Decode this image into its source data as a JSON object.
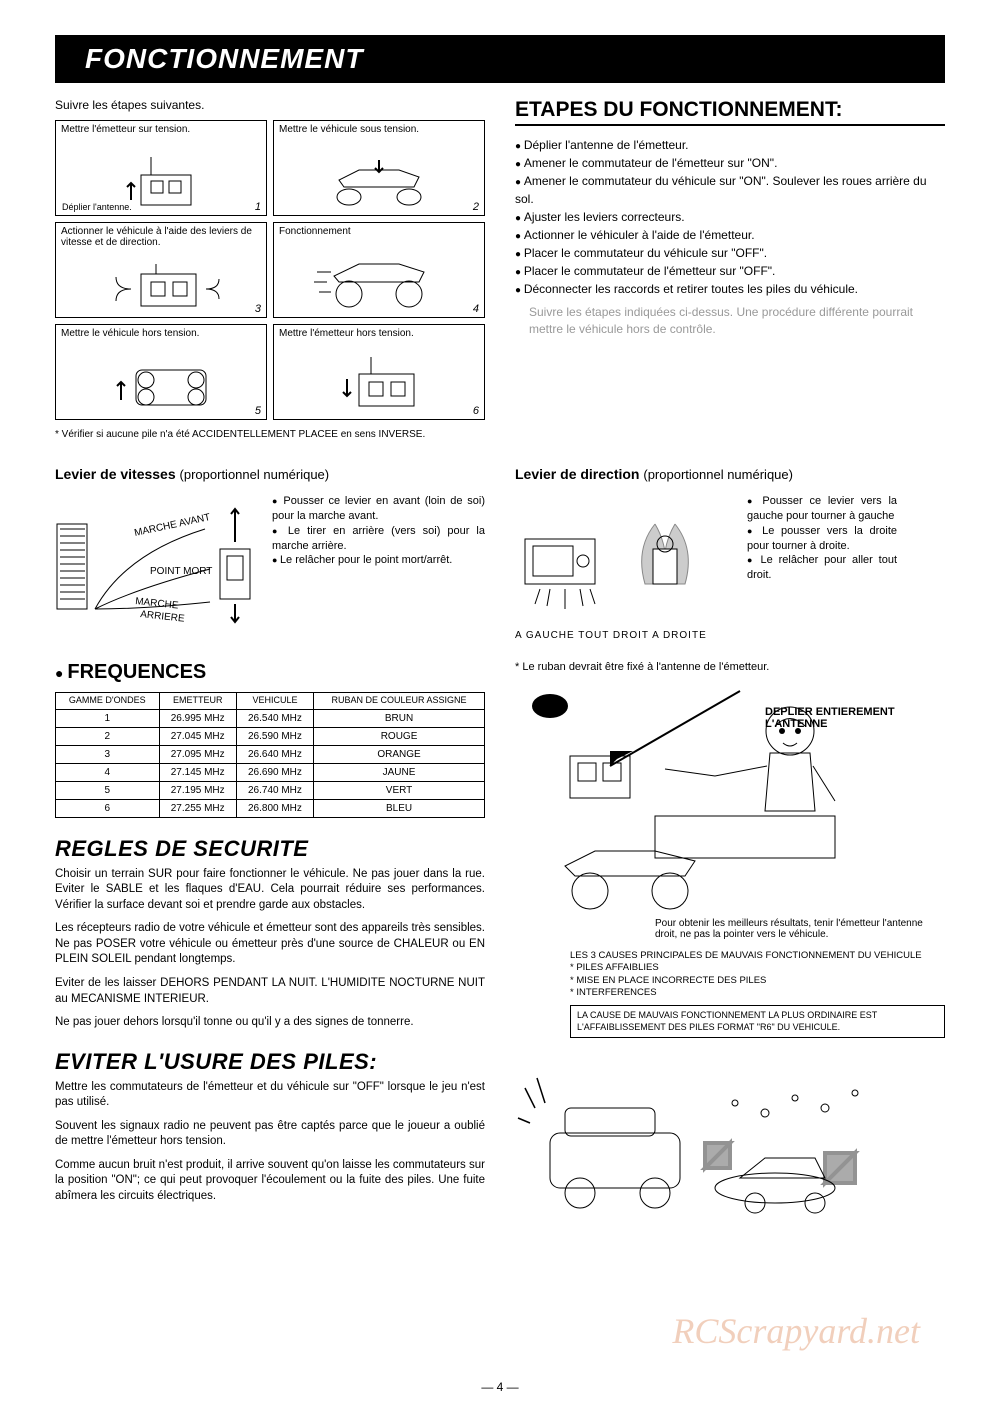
{
  "title": "FONCTIONNEMENT",
  "follow_steps": "Suivre les étapes suivantes.",
  "steps": [
    {
      "n": "1",
      "text": "Mettre l'émetteur sur tension.",
      "sub": "Déplier l'antenne."
    },
    {
      "n": "2",
      "text": "Mettre le véhicule sous tension."
    },
    {
      "n": "3",
      "text": "Actionner le véhicule à l'aide des leviers de vitesse et de direction."
    },
    {
      "n": "4",
      "text": "Fonctionnement"
    },
    {
      "n": "5",
      "text": "Mettre le véhicule hors tension."
    },
    {
      "n": "6",
      "text": "Mettre l'émetteur hors tension."
    }
  ],
  "step_footnote": "* Vérifier si aucune pile n'a été ACCIDENTELLEMENT PLACEE en sens INVERSE.",
  "etapes": {
    "title": "ETAPES DU FONCTIONNEMENT:",
    "items": [
      "Déplier l'antenne de l'émetteur.",
      "Amener le commutateur de l'émetteur sur \"ON\".",
      "Amener le commutateur du véhicule sur \"ON\". Soulever les roues arrière du sol.",
      "Ajuster les leviers correcteurs.",
      "Actionner le véhiculer à l'aide de l'émetteur.",
      "Placer le commutateur du véhicule sur \"OFF\".",
      "Placer le commutateur de l'émetteur sur \"OFF\".",
      "Déconnecter les raccords et retirer toutes les piles du véhicule."
    ],
    "note": "Suivre les étapes indiquées ci-dessus. Une procédure différente pourrait mettre le véhicule hors de contrôle."
  },
  "lever_speed": {
    "title": "Levier de vitesses",
    "paren": "(proportionnel numérique)",
    "labels": {
      "fwd": "MARCHE AVANT",
      "neutral": "POINT MORT",
      "rev": "MARCHE ARRIERE"
    },
    "items": [
      "Pousser ce levier en avant (loin de soi) pour la marche avant.",
      "Le tirer en arrière (vers soi) pour la marche arrière.",
      "Le relâcher pour le point mort/arrêt."
    ]
  },
  "lever_dir": {
    "title": "Levier de direction",
    "paren": "(proportionnel numérique)",
    "caption": "A GAUCHE   TOUT DROIT   A DROITE",
    "items": [
      "Pousser ce levier vers la gauche pour tourner à gauche",
      "Le pousser vers la droite pour tourner à droite.",
      "Le relâcher pour aller tout droit."
    ]
  },
  "freq": {
    "title": "FREQUENCES",
    "headers": [
      "GAMME D'ONDES",
      "EMETTEUR",
      "VEHICULE",
      "RUBAN DE COULEUR ASSIGNE"
    ],
    "rows": [
      [
        "1",
        "26.995 MHz",
        "26.540 MHz",
        "BRUN"
      ],
      [
        "2",
        "27.045 MHz",
        "26.590 MHz",
        "ROUGE"
      ],
      [
        "3",
        "27.095 MHz",
        "26.640 MHz",
        "ORANGE"
      ],
      [
        "4",
        "27.145 MHz",
        "26.690 MHz",
        "JAUNE"
      ],
      [
        "5",
        "27.195 MHz",
        "26.740 MHz",
        "VERT"
      ],
      [
        "6",
        "27.255 MHz",
        "26.800 MHz",
        "BLEU"
      ]
    ]
  },
  "ribbon": "* Le ruban devrait être fixé à l'antenne de l'émetteur.",
  "antenna_label": "DEPLIER ENTIEREMENT L'ANTENNE",
  "result_note": "Pour obtenir les meilleurs résultats, tenir l'émetteur l'antenne droit, ne pas la pointer vers le véhicule.",
  "causes": {
    "head": "LES 3 CAUSES PRINCIPALES DE MAUVAIS FONCTIONNEMENT DU VEHICULE",
    "items": [
      "* PILES AFFAIBLIES",
      "* MISE EN PLACE INCORRECTE DES PILES",
      "* INTERFERENCES"
    ],
    "box": "LA CAUSE DE MAUVAIS FONCTIONNEMENT LA PLUS ORDINAIRE EST L'AFFAIBLISSEMENT DES PILES FORMAT \"R6\" DU VEHICULE."
  },
  "safety": {
    "title": "REGLES DE SECURITE",
    "p1": "Choisir un terrain SUR pour faire fonctionner le véhicule. Ne pas jouer dans la rue. Eviter le SABLE et les flaques d'EAU. Cela pourrait réduire ses performances. Vérifier la surface devant soi et prendre garde aux obstacles.",
    "p2": "Les récepteurs radio de votre véhicule et émetteur sont des appareils très sensibles. Ne pas POSER votre véhicule ou émetteur près d'une source de CHALEUR ou EN PLEIN SOLEIL pendant longtemps.",
    "p3": "Eviter de les laisser DEHORS PENDANT LA NUIT. L'HUMIDITE NOCTURNE NUIT au MECANISME INTERIEUR.",
    "p4": "Ne pas jouer dehors lorsqu'il tonne ou qu'il y a des signes de tonnerre."
  },
  "battery": {
    "title": "EVITER L'USURE DES PILES:",
    "p1": "Mettre les commutateurs de l'émetteur et du véhicule sur \"OFF\" lorsque le jeu n'est pas utilisé.",
    "p2": "Souvent les signaux radio ne peuvent pas être captés parce que le joueur a oublié de mettre l'émetteur hors tension.",
    "p3": "Comme aucun bruit n'est produit, il arrive souvent qu'on laisse les commutateurs sur la position \"ON\"; ce qui peut provoquer l'écoulement ou la fuite des piles. Une fuite abîmera les circuits électriques."
  },
  "page": "— 4 —",
  "watermark": "RCScrapyard.net"
}
